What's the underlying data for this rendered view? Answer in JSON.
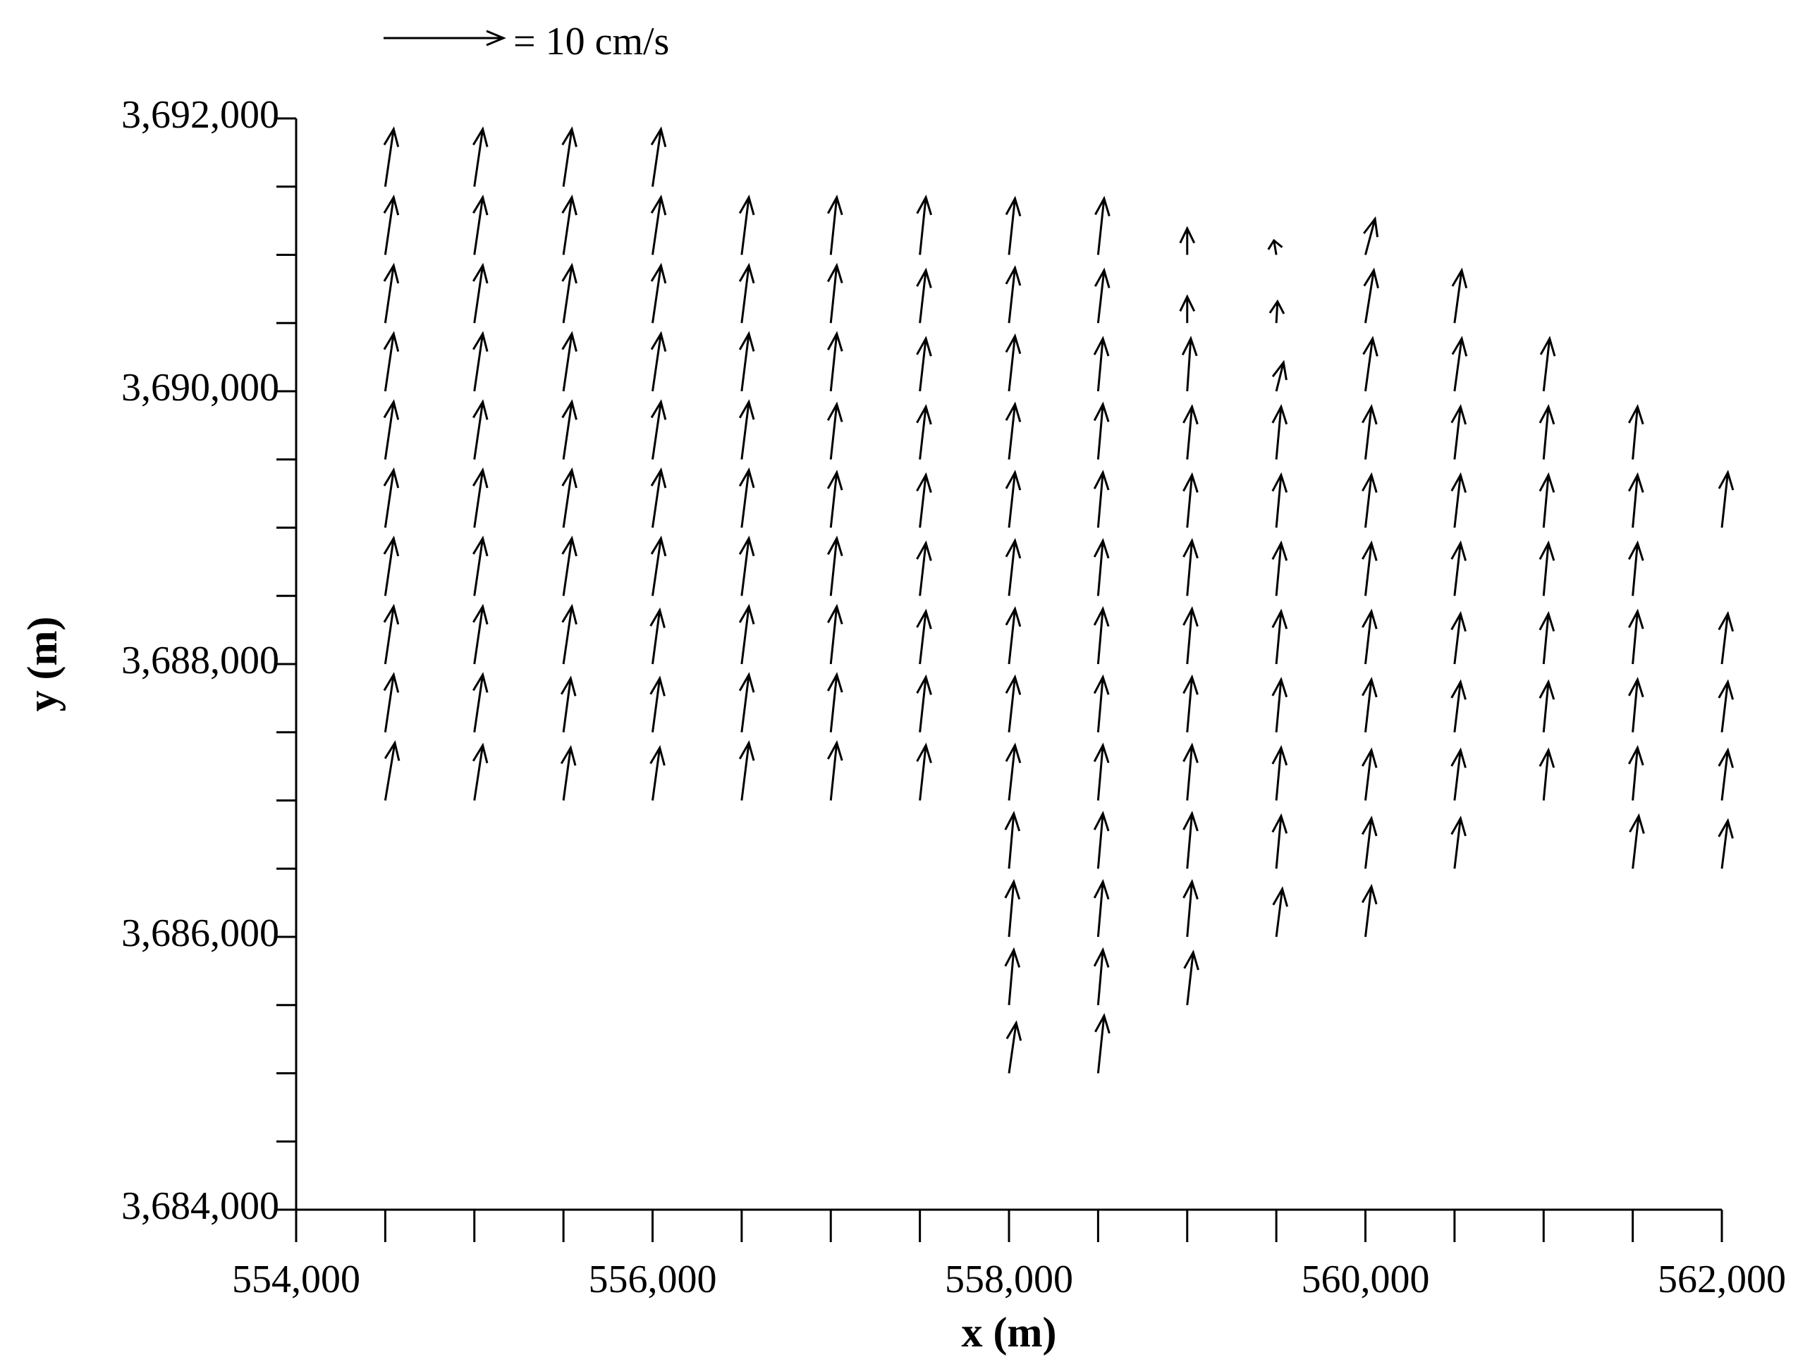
{
  "chart_data": {
    "type": "quiver",
    "xlabel": "x (m)",
    "ylabel": "y (m)",
    "key_value": 10,
    "key_label": "= 10 cm/s",
    "xlim": [
      554000,
      562000
    ],
    "xticks": [
      {
        "value": 554000,
        "label": "554,000"
      },
      {
        "value": 556000,
        "label": "556,000"
      },
      {
        "value": 558000,
        "label": "558,000"
      },
      {
        "value": 560000,
        "label": "560,000"
      },
      {
        "value": 562000,
        "label": "562,000"
      }
    ],
    "xminorticks": [
      554500,
      555000,
      555500,
      556500,
      557000,
      557500,
      558500,
      559000,
      559500,
      560500,
      561000,
      561500
    ],
    "ylim": [
      3684000,
      3692000
    ],
    "yticks": [
      {
        "value": 3684000,
        "label": "3,684,000"
      },
      {
        "value": 3686000,
        "label": "3,686,000"
      },
      {
        "value": 3688000,
        "label": "3,688,000"
      },
      {
        "value": 3690000,
        "label": "3,690,000"
      },
      {
        "value": 3692000,
        "label": "3,692,000"
      }
    ],
    "yminorticks": [
      3684500,
      3685000,
      3685500,
      3686500,
      3687000,
      3687500,
      3688500,
      3689000,
      3689500,
      3690500,
      3691000,
      3691500
    ],
    "color": "#000000",
    "vectors": [
      {
        "x": 554500,
        "y": [
          3691500,
          3691000,
          3690500,
          3690000,
          3689500,
          3689000,
          3688500,
          3688000,
          3687500,
          3687000
        ],
        "u": [
          0.7,
          0.7,
          0.7,
          0.7,
          0.7,
          0.7,
          0.7,
          0.7,
          0.7,
          0.8
        ],
        "v": [
          4.8,
          4.8,
          4.8,
          4.8,
          4.8,
          4.8,
          4.8,
          4.8,
          4.8,
          4.8
        ]
      },
      {
        "x": 555000,
        "y": [
          3691500,
          3691000,
          3690500,
          3690000,
          3689500,
          3689000,
          3688500,
          3688000,
          3687500,
          3687000
        ],
        "u": [
          0.7,
          0.7,
          0.7,
          0.7,
          0.7,
          0.7,
          0.7,
          0.7,
          0.7,
          0.7
        ],
        "v": [
          4.8,
          4.8,
          4.8,
          4.8,
          4.8,
          4.8,
          4.8,
          4.8,
          4.8,
          4.6
        ]
      },
      {
        "x": 555500,
        "y": [
          3691500,
          3691000,
          3690500,
          3690000,
          3689500,
          3689000,
          3688500,
          3688000,
          3687500,
          3687000
        ],
        "u": [
          0.7,
          0.7,
          0.7,
          0.7,
          0.7,
          0.7,
          0.7,
          0.7,
          0.6,
          0.6
        ],
        "v": [
          4.8,
          4.8,
          4.8,
          4.8,
          4.8,
          4.8,
          4.8,
          4.8,
          4.5,
          4.4
        ]
      },
      {
        "x": 556000,
        "y": [
          3691500,
          3691000,
          3690500,
          3690000,
          3689500,
          3689000,
          3688500,
          3688000,
          3687500,
          3687000
        ],
        "u": [
          0.7,
          0.7,
          0.7,
          0.7,
          0.7,
          0.7,
          0.7,
          0.6,
          0.6,
          0.6
        ],
        "v": [
          4.8,
          4.8,
          4.8,
          4.8,
          4.8,
          4.8,
          4.8,
          4.5,
          4.5,
          4.4
        ]
      },
      {
        "x": 556500,
        "y": [
          3691000,
          3690500,
          3690000,
          3689500,
          3689000,
          3688500,
          3688000,
          3687500,
          3687000
        ],
        "u": [
          0.6,
          0.6,
          0.6,
          0.6,
          0.6,
          0.6,
          0.6,
          0.6,
          0.6
        ],
        "v": [
          4.8,
          4.8,
          4.8,
          4.8,
          4.8,
          4.8,
          4.8,
          4.8,
          4.8
        ]
      },
      {
        "x": 557000,
        "y": [
          3691000,
          3690500,
          3690000,
          3689500,
          3689000,
          3688500,
          3688000,
          3687500,
          3687000
        ],
        "u": [
          0.5,
          0.5,
          0.5,
          0.5,
          0.5,
          0.5,
          0.5,
          0.5,
          0.5
        ],
        "v": [
          4.8,
          4.8,
          4.8,
          4.6,
          4.6,
          4.8,
          4.8,
          4.8,
          4.8
        ]
      },
      {
        "x": 557500,
        "y": [
          3691000,
          3690500,
          3690000,
          3689500,
          3689000,
          3688500,
          3688000,
          3687500,
          3687000
        ],
        "u": [
          0.5,
          0.5,
          0.5,
          0.5,
          0.5,
          0.5,
          0.5,
          0.5,
          0.5
        ],
        "v": [
          4.8,
          4.4,
          4.4,
          4.4,
          4.4,
          4.4,
          4.4,
          4.6,
          4.6
        ]
      },
      {
        "x": 558000,
        "y": [
          3691000,
          3690500,
          3690000,
          3689500,
          3689000,
          3688500,
          3688000,
          3687500,
          3687000,
          3686500,
          3686000,
          3685500,
          3685000
        ],
        "u": [
          0.5,
          0.5,
          0.5,
          0.5,
          0.5,
          0.5,
          0.5,
          0.5,
          0.5,
          0.4,
          0.4,
          0.4,
          0.6
        ],
        "v": [
          4.7,
          4.6,
          4.6,
          4.6,
          4.6,
          4.6,
          4.6,
          4.6,
          4.6,
          4.6,
          4.6,
          4.6,
          4.2
        ]
      },
      {
        "x": 558500,
        "y": [
          3691000,
          3690500,
          3690000,
          3689500,
          3689000,
          3688500,
          3688000,
          3687500,
          3687000,
          3686500,
          3686000,
          3685500,
          3685000
        ],
        "u": [
          0.5,
          0.5,
          0.4,
          0.4,
          0.4,
          0.4,
          0.4,
          0.4,
          0.4,
          0.4,
          0.4,
          0.4,
          0.5
        ],
        "v": [
          4.7,
          4.4,
          4.4,
          4.6,
          4.6,
          4.6,
          4.6,
          4.6,
          4.6,
          4.6,
          4.6,
          4.6,
          4.8
        ]
      },
      {
        "x": 559000,
        "y": [
          3691000,
          3690500,
          3690000,
          3689500,
          3689000,
          3688500,
          3688000,
          3687500,
          3687000,
          3686500,
          3686000,
          3685500
        ],
        "u": [
          0.0,
          0.0,
          0.3,
          0.4,
          0.4,
          0.4,
          0.4,
          0.4,
          0.4,
          0.4,
          0.4,
          0.5
        ],
        "v": [
          2.2,
          2.2,
          4.4,
          4.4,
          4.4,
          4.6,
          4.6,
          4.6,
          4.6,
          4.6,
          4.6,
          4.4
        ]
      },
      {
        "x": 559500,
        "y": [
          3691000,
          3690500,
          3690000,
          3689500,
          3689000,
          3688500,
          3688000,
          3687500,
          3687000,
          3686500,
          3686000
        ],
        "u": [
          -0.2,
          0.1,
          0.6,
          0.4,
          0.4,
          0.4,
          0.4,
          0.4,
          0.4,
          0.4,
          0.5
        ],
        "v": [
          1.2,
          1.8,
          2.4,
          4.4,
          4.4,
          4.4,
          4.4,
          4.4,
          4.4,
          4.4,
          4.0
        ]
      },
      {
        "x": 560000,
        "y": [
          3691000,
          3690500,
          3690000,
          3689500,
          3689000,
          3688500,
          3688000,
          3687500,
          3687000,
          3686500,
          3686000
        ],
        "u": [
          0.8,
          0.7,
          0.6,
          0.5,
          0.5,
          0.5,
          0.5,
          0.5,
          0.5,
          0.5,
          0.5
        ],
        "v": [
          3.0,
          4.4,
          4.4,
          4.4,
          4.4,
          4.4,
          4.4,
          4.4,
          4.2,
          4.2,
          4.2
        ]
      },
      {
        "x": 560500,
        "y": [
          3690500,
          3690000,
          3689500,
          3689000,
          3688500,
          3688000,
          3687500,
          3687000,
          3686500
        ],
        "u": [
          0.6,
          0.6,
          0.5,
          0.5,
          0.5,
          0.5,
          0.5,
          0.5,
          0.5
        ],
        "v": [
          4.4,
          4.4,
          4.4,
          4.4,
          4.4,
          4.2,
          4.2,
          4.2,
          4.2
        ]
      },
      {
        "x": 561000,
        "y": [
          3690000,
          3689500,
          3689000,
          3688500,
          3688000,
          3687500,
          3687000
        ],
        "u": [
          0.5,
          0.4,
          0.4,
          0.4,
          0.4,
          0.4,
          0.4
        ],
        "v": [
          4.4,
          4.4,
          4.4,
          4.4,
          4.2,
          4.2,
          4.2
        ]
      },
      {
        "x": 561500,
        "y": [
          3689500,
          3689000,
          3688500,
          3688000,
          3687500,
          3687000,
          3686500
        ],
        "u": [
          0.4,
          0.4,
          0.4,
          0.4,
          0.4,
          0.4,
          0.5
        ],
        "v": [
          4.4,
          4.4,
          4.4,
          4.4,
          4.4,
          4.4,
          4.4
        ]
      },
      {
        "x": 562000,
        "y": [
          3689000,
          3688000,
          3687500,
          3687000,
          3686500
        ],
        "u": [
          0.5,
          0.5,
          0.5,
          0.5,
          0.5
        ],
        "v": [
          4.6,
          4.2,
          4.2,
          4.2,
          4.0
        ]
      }
    ]
  }
}
